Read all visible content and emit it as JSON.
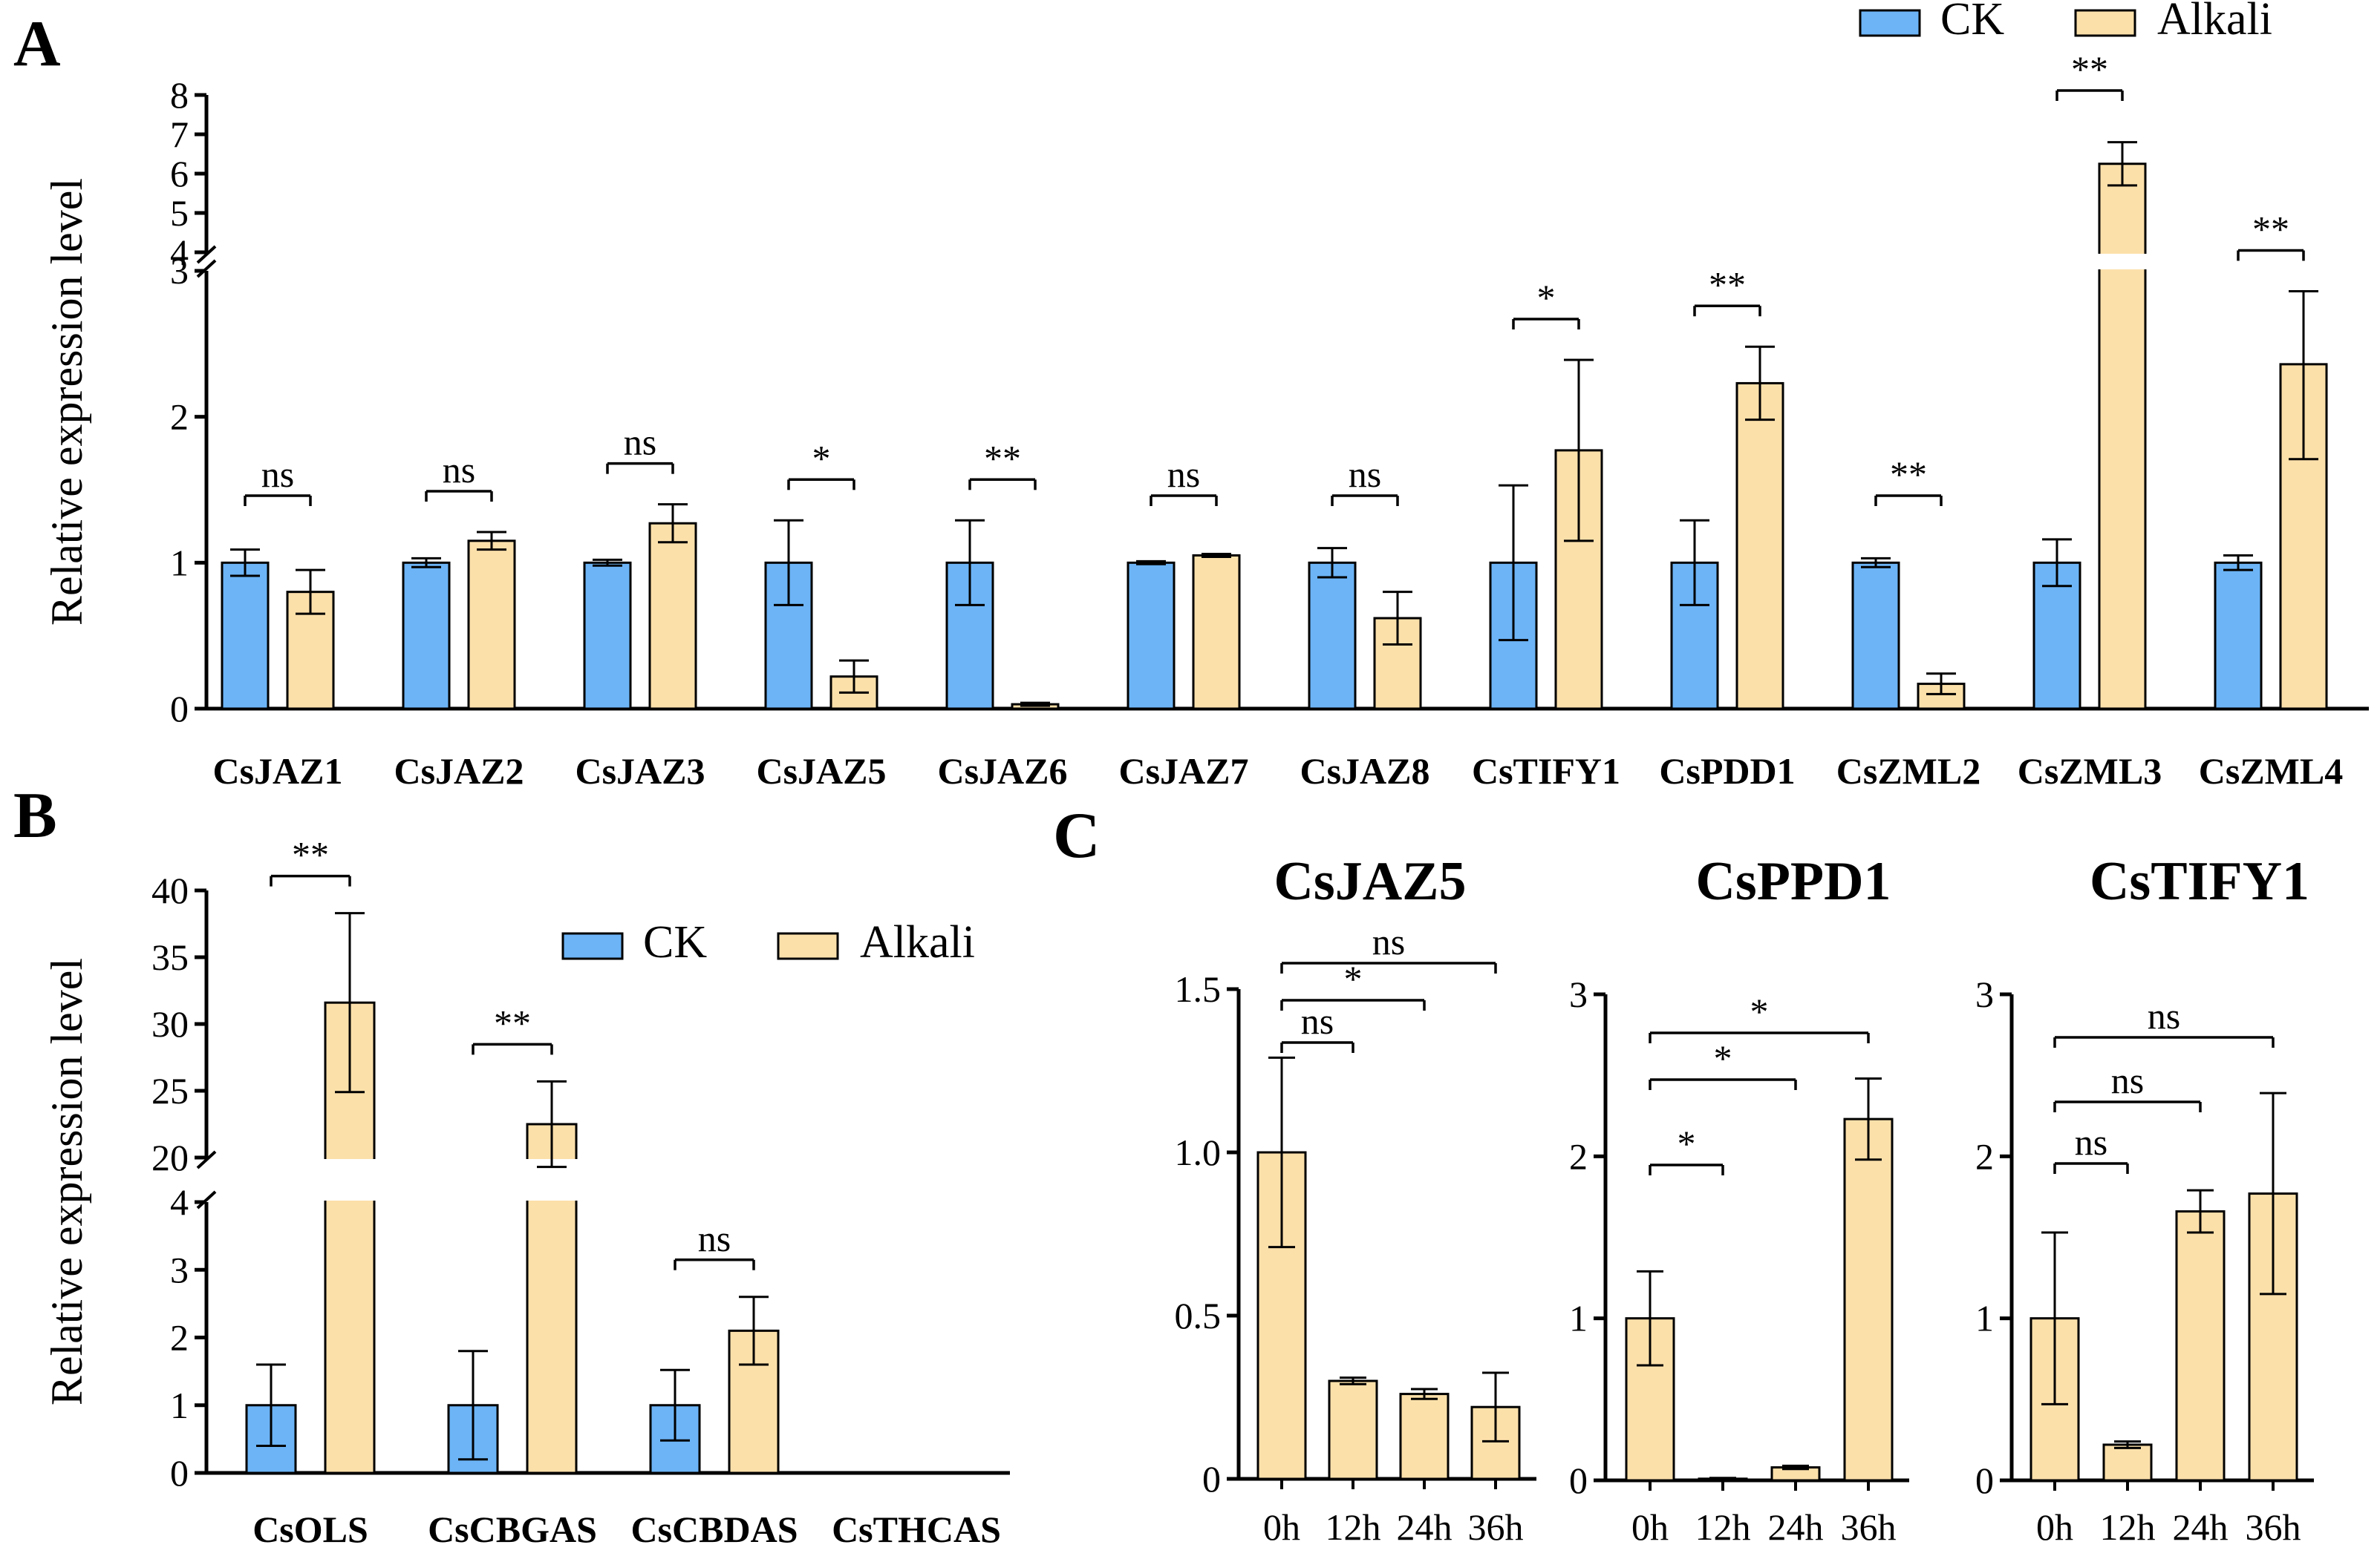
{
  "colors": {
    "ck": "#6CB4F6",
    "alkali": "#FCE0AA",
    "axis": "#000000"
  },
  "legend": {
    "ck": "CK",
    "alkali": "Alkali"
  },
  "chart_data": [
    {
      "panel": "A",
      "type": "bar",
      "ylabel": "Relative expression level",
      "ylim": [
        0,
        8
      ],
      "y_axis_break": [
        3,
        4
      ],
      "yticks_lower": [
        "0",
        "1",
        "2",
        "3"
      ],
      "yticks_upper": [
        "4",
        "5",
        "6",
        "7",
        "8"
      ],
      "legend_position": "top-right",
      "categories": [
        "CsJAZ1",
        "CsJAZ2",
        "CsJAZ3",
        "CsJAZ5",
        "CsJAZ6",
        "CsJAZ7",
        "CsJAZ8",
        "CsTIFY1",
        "CsPDD1",
        "CsZML2",
        "CsZML3",
        "CsZML4"
      ],
      "series": [
        {
          "name": "CK",
          "values": [
            1.0,
            1.0,
            1.0,
            1.0,
            1.0,
            1.0,
            1.0,
            1.0,
            1.0,
            1.0,
            1.0,
            1.0
          ],
          "errors": [
            0.09,
            0.03,
            0.02,
            0.29,
            0.29,
            0.01,
            0.1,
            0.53,
            0.29,
            0.03,
            0.16,
            0.05
          ]
        },
        {
          "name": "Alkali",
          "values": [
            0.8,
            1.15,
            1.27,
            0.22,
            0.03,
            1.05,
            0.62,
            1.77,
            2.23,
            0.17,
            6.25,
            2.36
          ],
          "errors": [
            0.15,
            0.06,
            0.13,
            0.11,
            0.01,
            0.01,
            0.18,
            0.62,
            0.25,
            0.07,
            0.55,
            0.65
          ]
        }
      ],
      "significance": [
        "ns",
        "ns",
        "ns",
        "*",
        "**",
        "ns",
        "ns",
        "*",
        "**",
        "**",
        "**",
        "**"
      ]
    },
    {
      "panel": "B",
      "type": "bar",
      "ylabel": "Relative expression level",
      "ylim": [
        0,
        40
      ],
      "y_axis_break": [
        4,
        20
      ],
      "yticks_lower": [
        "0",
        "1",
        "2",
        "3",
        "4"
      ],
      "yticks_upper": [
        "20",
        "25",
        "30",
        "35",
        "40"
      ],
      "legend_position": "top-right",
      "categories": [
        "CsOLS",
        "CsCBGAS",
        "CsCBDAS",
        "CsTHCAS"
      ],
      "series": [
        {
          "name": "CK",
          "values": [
            1.0,
            1.0,
            1.0,
            0
          ],
          "errors": [
            0.6,
            0.8,
            0.52,
            0
          ]
        },
        {
          "name": "Alkali",
          "values": [
            31.6,
            22.5,
            2.1,
            0
          ],
          "errors": [
            6.7,
            3.2,
            0.5,
            0
          ]
        }
      ],
      "significance": [
        "**",
        "**",
        "ns",
        ""
      ]
    },
    {
      "panel": "C",
      "type": "bar",
      "title": "CsJAZ5",
      "categories": [
        "0h",
        "12h",
        "24h",
        "36h"
      ],
      "values": [
        1.0,
        0.3,
        0.26,
        0.22
      ],
      "errors": [
        0.29,
        0.01,
        0.015,
        0.105
      ],
      "ylim": [
        0,
        1.5
      ],
      "yticks": [
        "0",
        "0.5",
        "1.0",
        "1.5"
      ],
      "comparisons": [
        {
          "from": "0h",
          "to": "12h",
          "label": "ns"
        },
        {
          "from": "0h",
          "to": "24h",
          "label": "*"
        },
        {
          "from": "0h",
          "to": "36h",
          "label": "ns"
        }
      ]
    },
    {
      "panel": "C",
      "type": "bar",
      "title": "CsPPD1",
      "categories": [
        "0h",
        "12h",
        "24h",
        "36h"
      ],
      "values": [
        1.0,
        0.01,
        0.08,
        2.23
      ],
      "errors": [
        0.29,
        0.005,
        0.01,
        0.25
      ],
      "ylim": [
        0,
        3
      ],
      "yticks": [
        "0",
        "1",
        "2",
        "3"
      ],
      "comparisons": [
        {
          "from": "0h",
          "to": "12h",
          "label": "*"
        },
        {
          "from": "0h",
          "to": "24h",
          "label": "*"
        },
        {
          "from": "0h",
          "to": "36h",
          "label": "*"
        }
      ]
    },
    {
      "panel": "C",
      "type": "bar",
      "title": "CsTIFY1",
      "categories": [
        "0h",
        "12h",
        "24h",
        "36h"
      ],
      "values": [
        1.0,
        0.22,
        1.66,
        1.77
      ],
      "errors": [
        0.53,
        0.02,
        0.13,
        0.62
      ],
      "ylim": [
        0,
        3
      ],
      "yticks": [
        "0",
        "1",
        "2",
        "3"
      ],
      "comparisons": [
        {
          "from": "0h",
          "to": "12h",
          "label": "ns"
        },
        {
          "from": "0h",
          "to": "24h",
          "label": "ns"
        },
        {
          "from": "0h",
          "to": "36h",
          "label": "ns"
        }
      ]
    }
  ]
}
